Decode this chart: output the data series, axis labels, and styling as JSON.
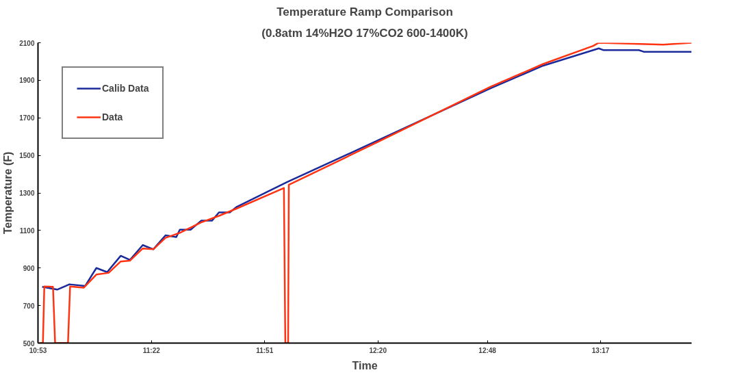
{
  "chart_data": {
    "type": "line",
    "title": "Temperature Ramp Comparison",
    "subtitle": "(0.8atm 14%H2O 17%CO2 600-1400K)",
    "xlabel": "Time",
    "ylabel": "Temperature (F)",
    "xlim": [
      10.883,
      13.671
    ],
    "ylim": [
      500,
      2100
    ],
    "xticks": [
      {
        "value": 10.883,
        "label": "10:53"
      },
      {
        "value": 11.367,
        "label": "11:22"
      },
      {
        "value": 11.85,
        "label": "11:51"
      },
      {
        "value": 12.333,
        "label": "12:20"
      },
      {
        "value": 12.8,
        "label": "12:48"
      },
      {
        "value": 13.283,
        "label": "13:17"
      }
    ],
    "yticks": [
      500,
      700,
      900,
      1100,
      1300,
      1500,
      1700,
      1900,
      2100
    ],
    "grid": false,
    "legend": "top left",
    "line_style": "solid",
    "marker": "none",
    "series": [
      {
        "name": "Calib Data",
        "color": "#1a2a9a",
        "x": [
          10.901,
          10.965,
          11.017,
          11.084,
          11.132,
          11.178,
          11.236,
          11.275,
          11.33,
          11.375,
          11.427,
          11.473,
          11.488,
          11.534,
          11.579,
          11.625,
          11.655,
          11.701,
          11.731,
          11.944,
          12.33,
          12.813,
          13.038,
          13.275,
          13.294,
          13.446,
          13.467,
          13.671
        ],
        "values": [
          800,
          785,
          813,
          804,
          900,
          878,
          965,
          943,
          1022,
          1000,
          1074,
          1065,
          1104,
          1104,
          1152,
          1152,
          1196,
          1196,
          1226,
          1357,
          1578,
          1857,
          1978,
          2070,
          2061,
          2061,
          2052,
          2052
        ]
      },
      {
        "name": "Data",
        "color": "#ff3311",
        "x": [
          10.889,
          10.904,
          10.91,
          10.947,
          10.956,
          11.011,
          11.02,
          11.078,
          11.132,
          11.184,
          11.236,
          11.275,
          11.33,
          11.375,
          11.427,
          11.488,
          11.579,
          11.655,
          11.731,
          11.932,
          11.938,
          11.95,
          11.953,
          12.33,
          12.813,
          13.038,
          13.251,
          13.275,
          13.4,
          13.55,
          13.671
        ],
        "values": [
          500,
          500,
          802,
          800,
          500,
          500,
          802,
          795,
          865,
          874,
          935,
          939,
          1004,
          1000,
          1061,
          1087,
          1143,
          1178,
          1217,
          1326,
          500,
          500,
          1343,
          1570,
          1865,
          1987,
          2083,
          2100,
          2095,
          2090,
          2100
        ]
      }
    ]
  }
}
